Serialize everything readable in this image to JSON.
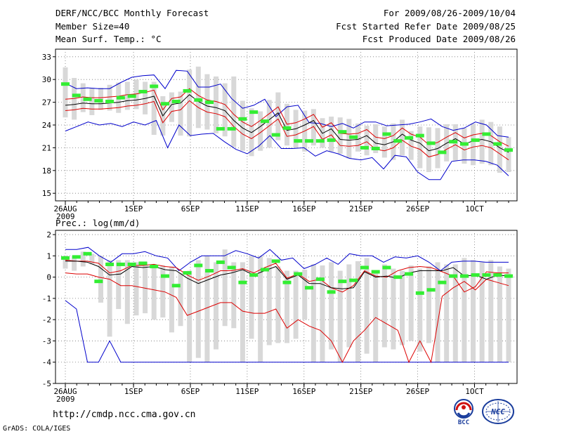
{
  "header": {
    "title": "DERF/NCC/BCC Monthly Forecast",
    "member_size": "Member Size=40",
    "variable": "Mean Surf. Temp.: °C",
    "period": "For 2009/08/26-2009/10/04",
    "started": "Fcst Started Refer Date 2009/08/25",
    "produced": "Fcst Produced Date 2009/08/26"
  },
  "footer": {
    "url": "http://cmdp.ncc.cma.gov.cn",
    "grads": "GrADS: COLA/IGES",
    "logo_bcc_text": "BCC",
    "logo_ncc_text": "NCC"
  },
  "colors": {
    "box": "#d8d8d8",
    "mean": "#000000",
    "spread": "#dd0000",
    "envelope": "#0000cc",
    "ensemble_marker": "#33ee33",
    "grid": "#777777"
  },
  "chart_data": [
    {
      "type": "box",
      "title": "Mean Surf. Temp.: °C",
      "ylabel": "°C",
      "ylim": [
        14,
        34
      ],
      "yticks": [
        15,
        18,
        21,
        24,
        27,
        30,
        33
      ],
      "x_tick_index": [
        0,
        6,
        11,
        16,
        21,
        26,
        31,
        36
      ],
      "x_tick_labels": [
        "26AUG",
        "1SEP",
        "6SEP",
        "11SEP",
        "16SEP",
        "21SEP",
        "26SEP",
        "1OCT"
      ],
      "x_year_label": "2009",
      "days": 40,
      "series": [
        {
          "name": "ensemble mean",
          "color": "#000000",
          "values": [
            26.6,
            26.7,
            26.9,
            26.8,
            26.8,
            26.9,
            27.0,
            27.2,
            27.3,
            27.5,
            27.8,
            25.2,
            26.7,
            26.9,
            28.0,
            27.1,
            26.5,
            26.3,
            25.9,
            24.6,
            23.6,
            23.0,
            23.8,
            24.7,
            25.6,
            23.3,
            23.5,
            24.0,
            24.6,
            22.9,
            23.5,
            22.1,
            22.0,
            22.1,
            22.6,
            21.6,
            21.4,
            21.8,
            22.8,
            22.0,
            21.6,
            20.6,
            20.9,
            21.6,
            22.2,
            21.5,
            21.9,
            22.1,
            21.8,
            21.0,
            20.4
          ]
        },
        {
          "name": "upper spread",
          "color": "#dd0000",
          "values": [
            27.4,
            27.5,
            27.7,
            27.6,
            27.6,
            27.7,
            27.8,
            28.0,
            28.1,
            28.3,
            28.6,
            26.0,
            27.5,
            27.7,
            28.8,
            27.9,
            27.3,
            27.1,
            26.7,
            25.4,
            24.4,
            23.8,
            24.6,
            25.5,
            26.4,
            24.1,
            24.3,
            24.8,
            25.4,
            23.7,
            24.3,
            22.9,
            22.8,
            22.9,
            23.4,
            22.4,
            22.2,
            22.6,
            23.6,
            22.8,
            22.4,
            21.4,
            21.7,
            22.4,
            23.0,
            22.3,
            22.7,
            22.9,
            22.6,
            21.8,
            21.2
          ]
        },
        {
          "name": "lower spread",
          "color": "#dd0000",
          "values": [
            25.9,
            26.0,
            26.2,
            26.1,
            26.1,
            26.2,
            26.3,
            26.5,
            26.6,
            26.8,
            27.1,
            24.3,
            25.8,
            26.0,
            27.2,
            26.3,
            25.7,
            25.5,
            25.1,
            23.8,
            22.8,
            22.2,
            23.0,
            23.9,
            24.8,
            22.5,
            22.7,
            23.2,
            23.8,
            22.1,
            22.7,
            21.3,
            21.2,
            21.3,
            21.8,
            20.8,
            20.6,
            21.0,
            22.0,
            21.2,
            20.8,
            19.8,
            20.1,
            20.8,
            21.4,
            20.7,
            21.1,
            21.3,
            21.0,
            20.2,
            19.4
          ]
        },
        {
          "name": "max",
          "color": "#0000cc",
          "values": [
            29.5,
            28.8,
            28.9,
            28.8,
            28.8,
            29.6,
            30.3,
            30.5,
            30.6,
            28.8,
            31.2,
            31.1,
            29.0,
            29.0,
            29.4,
            27.5,
            26.2,
            26.6,
            27.4,
            25.1,
            26.4,
            26.6,
            24.3,
            24.2,
            23.8,
            24.2,
            23.6,
            24.4,
            24.4,
            23.9,
            24.0,
            24.1,
            24.4,
            24.8,
            23.8,
            23.3,
            23.6,
            24.4,
            24.0,
            22.6,
            22.4
          ]
        },
        {
          "name": "min",
          "color": "#0000cc",
          "values": [
            23.2,
            23.8,
            24.4,
            24.0,
            24.2,
            23.8,
            24.4,
            24.0,
            24.6,
            21.0,
            24.0,
            22.6,
            22.8,
            22.9,
            21.8,
            20.8,
            20.2,
            21.2,
            22.6,
            20.9,
            20.9,
            21.0,
            19.9,
            20.6,
            20.2,
            19.6,
            19.4,
            19.7,
            18.2,
            20.0,
            19.8,
            17.8,
            16.8,
            16.8,
            19.2,
            19.4,
            19.4,
            19.2,
            18.7,
            17.3
          ]
        },
        {
          "name": "box top",
          "color": "#d8d8d8",
          "values": [
            31.6,
            30.2,
            29.5,
            28.9,
            28.9,
            29.3,
            29.6,
            29.7,
            30.0,
            29.7,
            29.7,
            27.8,
            28.3,
            28.4,
            31.3,
            31.7,
            30.7,
            30.4,
            29.5,
            30.4,
            27.2,
            26.2,
            25.8,
            27.3,
            28.3,
            26.8,
            26.0,
            25.9,
            26.1,
            24.9,
            25.1,
            25.0,
            24.8,
            24.2,
            23.9,
            24.1,
            23.8,
            24.2,
            24.7,
            23.2,
            23.8,
            23.7,
            23.6,
            24.1,
            24.1,
            23.6,
            24.2,
            24.7,
            24.4,
            23.8,
            22.4
          ]
        },
        {
          "name": "box bottom",
          "color": "#d8d8d8",
          "values": [
            25.0,
            24.7,
            25.7,
            25.3,
            26.0,
            25.9,
            25.6,
            26.0,
            26.1,
            25.4,
            22.7,
            22.6,
            24.4,
            22.6,
            22.5,
            23.6,
            23.4,
            22.9,
            22.5,
            21.1,
            20.6,
            19.9,
            20.6,
            21.0,
            22.0,
            21.3,
            21.0,
            20.5,
            21.3,
            21.0,
            20.5,
            20.2,
            19.6,
            20.5,
            20.0,
            20.3,
            19.7,
            19.4,
            20.0,
            19.4,
            18.3,
            17.8,
            18.3,
            19.2,
            19.3,
            18.9,
            18.7,
            18.9,
            18.7,
            17.7,
            17.8
          ]
        },
        {
          "name": "ensemble members",
          "color": "#33ee33",
          "values": [
            29.4,
            27.9,
            27.4,
            27.2,
            27.1,
            27.6,
            27.8,
            28.4,
            29.1,
            26.8,
            27.1,
            28.5,
            27.3,
            27.0,
            23.5,
            23.5,
            24.8,
            25.7,
            24.5,
            22.7,
            23.6,
            21.9,
            21.9,
            21.9,
            22.0,
            23.1,
            22.4,
            21.0,
            20.9,
            22.8,
            21.9,
            22.3,
            22.6,
            21.6,
            20.4,
            21.8,
            21.5,
            22.0,
            22.8,
            21.5,
            20.7
          ]
        }
      ]
    },
    {
      "type": "box",
      "title": "Prec.: log(mm/d)",
      "ylabel": "log(mm/d)",
      "ylim": [
        -5,
        2.2
      ],
      "yticks": [
        -5,
        -4,
        -3,
        -2,
        -1,
        0,
        1,
        2
      ],
      "x_tick_index": [
        0,
        6,
        11,
        16,
        21,
        26,
        31,
        36
      ],
      "x_tick_labels": [
        "26AUG",
        "1SEP",
        "6SEP",
        "11SEP",
        "16SEP",
        "21SEP",
        "26SEP",
        "1OCT"
      ],
      "x_year_label": "2009",
      "days": 40,
      "series": [
        {
          "name": "ensemble mean",
          "color": "#000000",
          "values": [
            0.75,
            0.75,
            0.7,
            0.5,
            0.1,
            0.15,
            0.5,
            0.45,
            0.5,
            0.35,
            0.3,
            -0.05,
            -0.3,
            -0.1,
            0.1,
            0.2,
            0.35,
            0.1,
            0.3,
            0.5,
            -0.1,
            0.1,
            -0.3,
            -0.3,
            -0.5,
            -0.55,
            -0.5,
            0.25,
            0.0,
            0.05,
            -0.05,
            0.2,
            0.3,
            0.3,
            0.3,
            0.45,
            0.05,
            0.1,
            -0.1,
            0.1,
            0.05
          ]
        },
        {
          "name": "upper spread",
          "color": "#dd0000",
          "values": [
            0.8,
            0.75,
            0.75,
            0.65,
            0.2,
            0.3,
            0.55,
            0.55,
            0.6,
            0.5,
            0.45,
            0.1,
            -0.15,
            0.05,
            0.3,
            0.3,
            0.4,
            0.2,
            0.45,
            0.65,
            -0.05,
            0.15,
            -0.2,
            -0.1,
            -0.5,
            -0.7,
            -0.4,
            0.3,
            0.05,
            0.0,
            0.3,
            0.45,
            0.5,
            0.45,
            0.25,
            0.05,
            -0.7,
            -0.45,
            0.25,
            0.2,
            0.2
          ]
        },
        {
          "name": "lower spread",
          "color": "#dd0000",
          "values": [
            0.2,
            0.15,
            0.15,
            0.0,
            -0.1,
            -0.4,
            -0.4,
            -0.5,
            -0.6,
            -0.7,
            -0.95,
            -1.8,
            -1.6,
            -1.4,
            -1.2,
            -1.2,
            -1.6,
            -1.7,
            -1.7,
            -1.5,
            -2.4,
            -2.0,
            -2.3,
            -2.5,
            -3.0,
            -4.0,
            -3.0,
            -2.5,
            -1.9,
            -2.2,
            -2.5,
            -4.0,
            -3.0,
            -4.0,
            -0.9,
            -0.5,
            -0.2,
            -0.6,
            -0.1,
            -0.25,
            -0.4
          ]
        },
        {
          "name": "max",
          "color": "#0000cc",
          "values": [
            1.3,
            1.3,
            1.4,
            1.0,
            0.7,
            1.1,
            1.1,
            1.2,
            1.0,
            0.9,
            0.3,
            0.7,
            1.0,
            1.0,
            1.0,
            1.25,
            1.1,
            0.9,
            1.3,
            0.8,
            0.9,
            0.4,
            0.6,
            0.9,
            0.6,
            1.1,
            1.0,
            1.0,
            0.7,
            0.95,
            0.9,
            1.0,
            0.7,
            0.3,
            0.7,
            0.75,
            0.75,
            0.7,
            0.7,
            0.7
          ]
        },
        {
          "name": "min",
          "color": "#0000cc",
          "values": [
            -1.1,
            -1.5,
            -4.0,
            -4.0,
            -3.0,
            -4.0,
            -4.0,
            -4.0,
            -4.0,
            -4.0,
            -4.0,
            -4.0,
            -4.0,
            -4.0,
            -4.0,
            -4.0,
            -4.0,
            -4.0,
            -4.0,
            -4.0,
            -4.0,
            -4.0,
            -4.0,
            -4.0,
            -4.0,
            -4.0,
            -4.0,
            -4.0,
            -4.0,
            -4.0,
            -4.0,
            -4.0,
            -4.0,
            -4.0,
            -4.0,
            -4.0,
            -4.0,
            -4.0,
            -4.0,
            -4.0,
            -4.0
          ]
        },
        {
          "name": "box top",
          "color": "#d8d8d8",
          "values": [
            1.0,
            1.0,
            1.2,
            1.1,
            1.0,
            0.8,
            0.8,
            0.8,
            0.7,
            0.7,
            0.6,
            0.55,
            0.5,
            0.2,
            0.3,
            0.8,
            1.0,
            0.7,
            1.3,
            0.7,
            0.7,
            1.0,
            1.0,
            0.9,
            0.5,
            0.3,
            0.3,
            0.35,
            0.6,
            0.55,
            0.7,
            0.3,
            0.6,
            0.75,
            0.9,
            0.3,
            0.6,
            0.4,
            0.3,
            0.55,
            0.4,
            0.5,
            0.7,
            0.6,
            0.6,
            0.9,
            0.8,
            0.7,
            0.8,
            0.5,
            0.4
          ]
        },
        {
          "name": "box bottom",
          "color": "#d8d8d8",
          "values": [
            0.4,
            0.3,
            0.5,
            0.6,
            -1.2,
            -2.8,
            -1.5,
            -2.2,
            -1.8,
            -1.7,
            -2.0,
            -1.9,
            -2.6,
            -2.3,
            -4.0,
            -3.8,
            -4.0,
            -3.4,
            -2.3,
            -2.4,
            -4.0,
            -2.9,
            -4.0,
            -3.2,
            -3.1,
            -3.1,
            -2.9,
            -2.0,
            -4.0,
            -4.0,
            -3.4,
            -4.0,
            -3.3,
            -4.0,
            -3.6,
            -4.0,
            -3.3,
            -3.4,
            -3.2,
            -3.0,
            -3.5,
            -3.1,
            -4.0,
            -4.0,
            -4.0,
            -4.0,
            -4.0,
            -4.0,
            -4.0,
            -4.0,
            -4.0
          ]
        },
        {
          "name": "ensemble members",
          "color": "#33ee33",
          "values": [
            0.9,
            0.95,
            1.1,
            -0.2,
            0.6,
            0.6,
            0.6,
            0.65,
            0.5,
            0.05,
            -0.4,
            0.2,
            0.55,
            0.3,
            0.7,
            0.45,
            -0.25,
            0.1,
            0.35,
            0.75,
            -0.25,
            0.15,
            -0.5,
            -0.1,
            -0.7,
            -0.2,
            -0.15,
            0.45,
            0.25,
            0.45,
            0.0,
            0.15,
            -0.75,
            -0.6,
            -0.25,
            0.05,
            0.05,
            0.1,
            0.1,
            0.1,
            0.05
          ]
        }
      ]
    }
  ]
}
